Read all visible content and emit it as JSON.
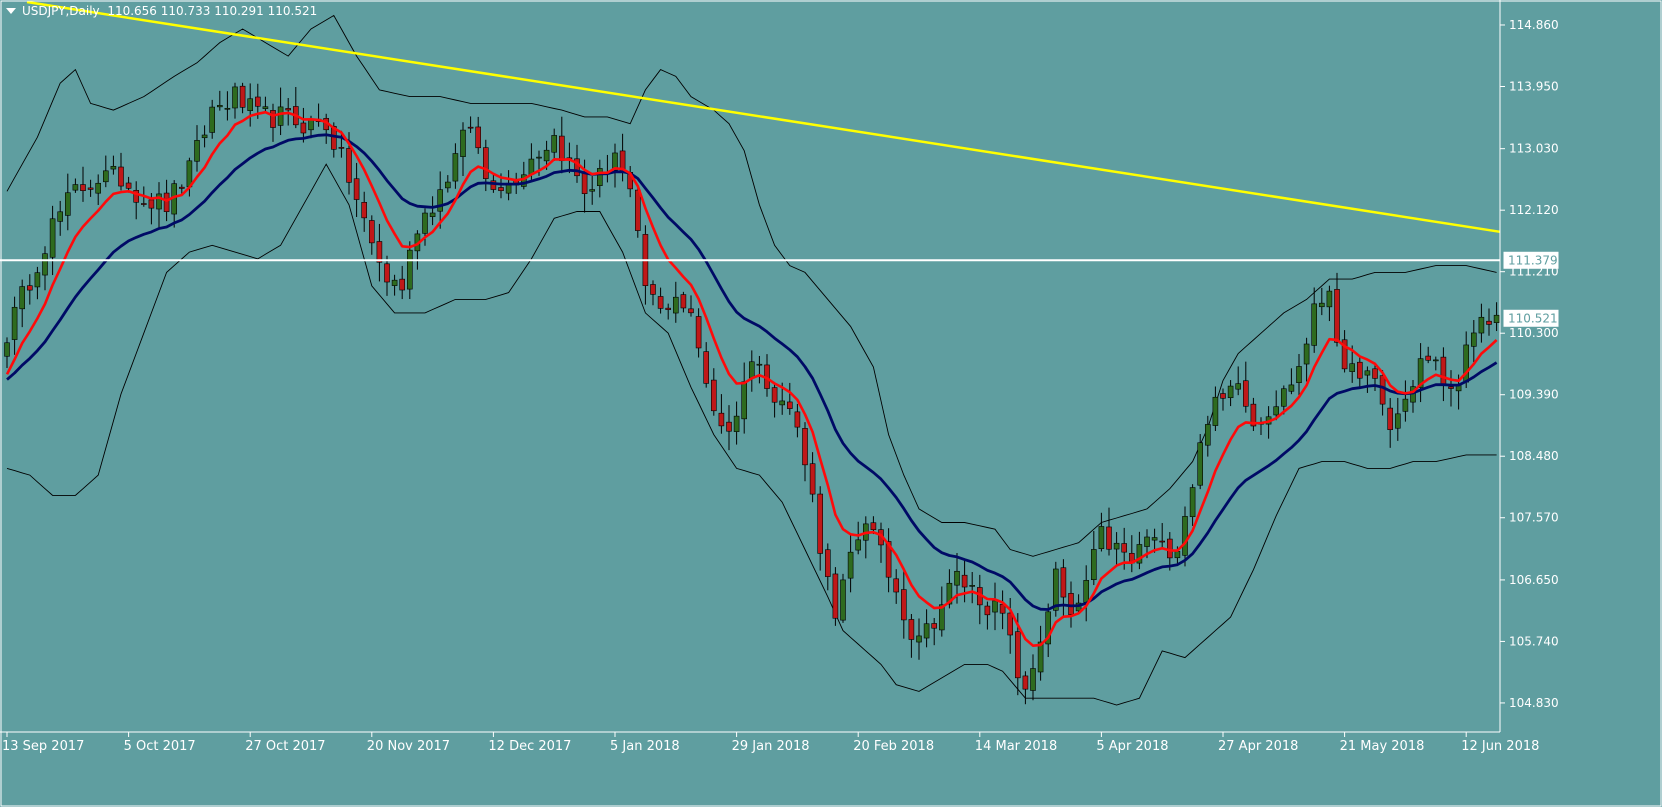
{
  "header": {
    "symbol": "USDJPY,Daily",
    "ohlc": "110.656 110.733 110.291 110.521"
  },
  "colors": {
    "background": "#5f9ea0",
    "bull_candle": "#2e6b1f",
    "bear_candle": "#c01818",
    "fast_ma": "#ff0a0a",
    "slow_ma": "#000a66",
    "bollinger": "#000000",
    "trendline": "#ffff00",
    "hline": "#ffffff",
    "axis_text": "#ffffff"
  },
  "chart_data": {
    "type": "candlestick",
    "ylim": [
      104.4,
      115.2
    ],
    "y_ticks": [
      "114.860",
      "113.950",
      "113.030",
      "112.120",
      "111.210",
      "110.300",
      "109.390",
      "108.480",
      "107.570",
      "106.650",
      "105.740",
      "104.830"
    ],
    "x_ticks": [
      "13 Sep 2017",
      "5 Oct 2017",
      "27 Oct 2017",
      "20 Nov 2017",
      "12 Dec 2017",
      "5 Jan 2018",
      "29 Jan 2018",
      "20 Feb 2018",
      "14 Mar 2018",
      "5 Apr 2018",
      "27 Apr 2018",
      "21 May 2018",
      "12 Jun 2018"
    ],
    "x_tick_bar_index": [
      0,
      16,
      32,
      48,
      64,
      80,
      96,
      112,
      128,
      144,
      160,
      176,
      192
    ],
    "bar_count": 197,
    "price_anchors": [
      [
        0,
        110.3
      ],
      [
        3,
        111.1
      ],
      [
        6,
        111.9
      ],
      [
        9,
        112.4
      ],
      [
        12,
        112.6
      ],
      [
        15,
        112.6
      ],
      [
        18,
        112.3
      ],
      [
        21,
        112.2
      ],
      [
        24,
        112.7
      ],
      [
        27,
        113.6
      ],
      [
        30,
        113.8
      ],
      [
        33,
        113.5
      ],
      [
        36,
        113.5
      ],
      [
        39,
        113.4
      ],
      [
        42,
        113.4
      ],
      [
        45,
        112.6
      ],
      [
        48,
        111.6
      ],
      [
        50,
        111.1
      ],
      [
        52,
        111.0
      ],
      [
        54,
        111.9
      ],
      [
        57,
        112.4
      ],
      [
        59,
        112.9
      ],
      [
        61,
        113.4
      ],
      [
        63,
        112.6
      ],
      [
        66,
        112.5
      ],
      [
        69,
        112.9
      ],
      [
        72,
        113.2
      ],
      [
        74,
        112.8
      ],
      [
        76,
        112.4
      ],
      [
        78,
        112.6
      ],
      [
        80,
        113.0
      ],
      [
        82,
        112.3
      ],
      [
        84,
        111.0
      ],
      [
        86,
        110.6
      ],
      [
        88,
        110.9
      ],
      [
        90,
        110.5
      ],
      [
        93,
        109.2
      ],
      [
        95,
        108.8
      ],
      [
        97,
        109.6
      ],
      [
        99,
        110.0
      ],
      [
        101,
        109.3
      ],
      [
        103,
        109.2
      ],
      [
        105,
        108.5
      ],
      [
        107,
        107.2
      ],
      [
        109,
        106.0
      ],
      [
        111,
        107.0
      ],
      [
        113,
        107.6
      ],
      [
        115,
        107.0
      ],
      [
        117,
        106.5
      ],
      [
        119,
        105.9
      ],
      [
        121,
        105.9
      ],
      [
        123,
        106.3
      ],
      [
        125,
        106.7
      ],
      [
        127,
        106.5
      ],
      [
        129,
        106.3
      ],
      [
        131,
        106.1
      ],
      [
        134,
        104.9
      ],
      [
        136,
        105.8
      ],
      [
        138,
        106.7
      ],
      [
        140,
        106.0
      ],
      [
        142,
        106.6
      ],
      [
        144,
        107.3
      ],
      [
        146,
        107.1
      ],
      [
        148,
        106.9
      ],
      [
        150,
        107.3
      ],
      [
        152,
        107.1
      ],
      [
        154,
        107.2
      ],
      [
        156,
        108.1
      ],
      [
        158,
        109.1
      ],
      [
        160,
        109.3
      ],
      [
        162,
        109.7
      ],
      [
        164,
        109.0
      ],
      [
        166,
        109.2
      ],
      [
        168,
        109.4
      ],
      [
        170,
        109.8
      ],
      [
        172,
        110.6
      ],
      [
        174,
        111.0
      ],
      [
        176,
        109.6
      ],
      [
        178,
        109.8
      ],
      [
        180,
        109.5
      ],
      [
        182,
        108.9
      ],
      [
        184,
        109.3
      ],
      [
        186,
        109.9
      ],
      [
        188,
        109.8
      ],
      [
        190,
        109.4
      ],
      [
        192,
        110.0
      ],
      [
        194,
        110.4
      ],
      [
        196,
        110.52
      ]
    ],
    "bb_upper_anchors": [
      [
        0,
        112.4
      ],
      [
        4,
        113.2
      ],
      [
        7,
        114.0
      ],
      [
        9,
        114.2
      ],
      [
        11,
        113.7
      ],
      [
        14,
        113.6
      ],
      [
        18,
        113.8
      ],
      [
        22,
        114.1
      ],
      [
        25,
        114.3
      ],
      [
        28,
        114.6
      ],
      [
        31,
        114.8
      ],
      [
        34,
        114.6
      ],
      [
        37,
        114.4
      ],
      [
        40,
        114.8
      ],
      [
        43,
        115.0
      ],
      [
        46,
        114.4
      ],
      [
        49,
        113.9
      ],
      [
        53,
        113.8
      ],
      [
        57,
        113.8
      ],
      [
        61,
        113.7
      ],
      [
        65,
        113.7
      ],
      [
        69,
        113.7
      ],
      [
        73,
        113.6
      ],
      [
        76,
        113.5
      ],
      [
        79,
        113.5
      ],
      [
        82,
        113.4
      ],
      [
        84,
        113.9
      ],
      [
        86,
        114.2
      ],
      [
        88,
        114.1
      ],
      [
        90,
        113.8
      ],
      [
        93,
        113.6
      ],
      [
        95,
        113.4
      ],
      [
        97,
        113.0
      ],
      [
        99,
        112.2
      ],
      [
        101,
        111.6
      ],
      [
        103,
        111.3
      ],
      [
        105,
        111.2
      ],
      [
        108,
        110.8
      ],
      [
        111,
        110.4
      ],
      [
        114,
        109.8
      ],
      [
        116,
        108.8
      ],
      [
        118,
        108.2
      ],
      [
        120,
        107.7
      ],
      [
        123,
        107.5
      ],
      [
        126,
        107.5
      ],
      [
        130,
        107.4
      ],
      [
        132,
        107.1
      ],
      [
        135,
        107.0
      ],
      [
        138,
        107.1
      ],
      [
        141,
        107.2
      ],
      [
        144,
        107.5
      ],
      [
        147,
        107.6
      ],
      [
        150,
        107.7
      ],
      [
        153,
        108.0
      ],
      [
        156,
        108.4
      ],
      [
        158,
        108.9
      ],
      [
        160,
        109.6
      ],
      [
        162,
        110.0
      ],
      [
        165,
        110.3
      ],
      [
        168,
        110.6
      ],
      [
        171,
        110.8
      ],
      [
        174,
        111.1
      ],
      [
        177,
        111.1
      ],
      [
        180,
        111.2
      ],
      [
        184,
        111.2
      ],
      [
        188,
        111.3
      ],
      [
        192,
        111.3
      ],
      [
        196,
        111.2
      ]
    ],
    "bb_lower_anchors": [
      [
        0,
        108.3
      ],
      [
        3,
        108.2
      ],
      [
        6,
        107.9
      ],
      [
        9,
        107.9
      ],
      [
        12,
        108.2
      ],
      [
        15,
        109.4
      ],
      [
        18,
        110.3
      ],
      [
        21,
        111.2
      ],
      [
        24,
        111.5
      ],
      [
        27,
        111.6
      ],
      [
        30,
        111.5
      ],
      [
        33,
        111.4
      ],
      [
        36,
        111.6
      ],
      [
        39,
        112.2
      ],
      [
        42,
        112.8
      ],
      [
        45,
        112.2
      ],
      [
        48,
        111.0
      ],
      [
        51,
        110.6
      ],
      [
        55,
        110.6
      ],
      [
        59,
        110.8
      ],
      [
        63,
        110.8
      ],
      [
        66,
        110.9
      ],
      [
        69,
        111.4
      ],
      [
        72,
        112.0
      ],
      [
        75,
        112.1
      ],
      [
        78,
        112.1
      ],
      [
        81,
        111.5
      ],
      [
        84,
        110.6
      ],
      [
        87,
        110.3
      ],
      [
        90,
        109.5
      ],
      [
        93,
        108.8
      ],
      [
        96,
        108.3
      ],
      [
        99,
        108.2
      ],
      [
        102,
        107.8
      ],
      [
        105,
        107.1
      ],
      [
        108,
        106.4
      ],
      [
        110,
        105.9
      ],
      [
        112,
        105.7
      ],
      [
        115,
        105.4
      ],
      [
        117,
        105.1
      ],
      [
        120,
        105.0
      ],
      [
        123,
        105.2
      ],
      [
        126,
        105.4
      ],
      [
        129,
        105.4
      ],
      [
        131,
        105.3
      ],
      [
        134,
        104.9
      ],
      [
        137,
        104.9
      ],
      [
        140,
        104.9
      ],
      [
        143,
        104.9
      ],
      [
        146,
        104.8
      ],
      [
        149,
        104.9
      ],
      [
        152,
        105.6
      ],
      [
        155,
        105.5
      ],
      [
        158,
        105.8
      ],
      [
        161,
        106.1
      ],
      [
        164,
        106.8
      ],
      [
        167,
        107.6
      ],
      [
        170,
        108.3
      ],
      [
        173,
        108.4
      ],
      [
        176,
        108.4
      ],
      [
        179,
        108.3
      ],
      [
        182,
        108.3
      ],
      [
        185,
        108.4
      ],
      [
        188,
        108.4
      ],
      [
        192,
        108.5
      ],
      [
        196,
        108.5
      ]
    ],
    "trendline": {
      "start": [
        0,
        115.2
      ],
      "end": [
        196,
        111.8
      ]
    },
    "hline": {
      "value": 111.379,
      "label": "111.379"
    },
    "last_price": {
      "value": 110.521,
      "label": "110.521"
    },
    "grid": false,
    "ma_fast_period": 8,
    "ma_slow_period": 21
  }
}
